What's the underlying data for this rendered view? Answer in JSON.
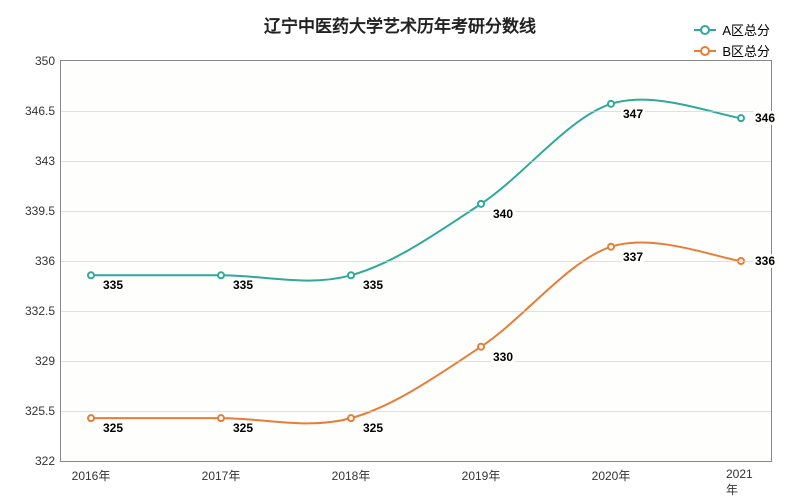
{
  "chart": {
    "type": "line",
    "title": "辽宁中医药大学艺术历年考研分数线",
    "title_fontsize": 17,
    "title_color": "#222222",
    "background_color": "#ffffff",
    "plot_background_color": "#fefefd",
    "border_color": "#888888",
    "grid_color": "#cccccc",
    "x": {
      "categories": [
        "2016年",
        "2017年",
        "2018年",
        "2019年",
        "2020年",
        "2021年"
      ],
      "fontsize": 12
    },
    "y": {
      "min": 322,
      "max": 350,
      "tick_step": 3.5,
      "ticks": [
        322,
        325.5,
        329,
        332.5,
        336,
        339.5,
        343,
        346.5,
        350
      ],
      "fontsize": 12
    },
    "series": [
      {
        "name": "A区总分",
        "color": "#2fa99a",
        "values": [
          335,
          335,
          335,
          340,
          347,
          346
        ],
        "line_width": 2,
        "marker_radius": 3
      },
      {
        "name": "B区总分",
        "color": "#e67e39",
        "values": [
          325,
          325,
          325,
          330,
          337,
          336
        ],
        "line_width": 2,
        "marker_radius": 3
      }
    ],
    "label_fontsize": 12,
    "label_fontweight": "bold"
  }
}
